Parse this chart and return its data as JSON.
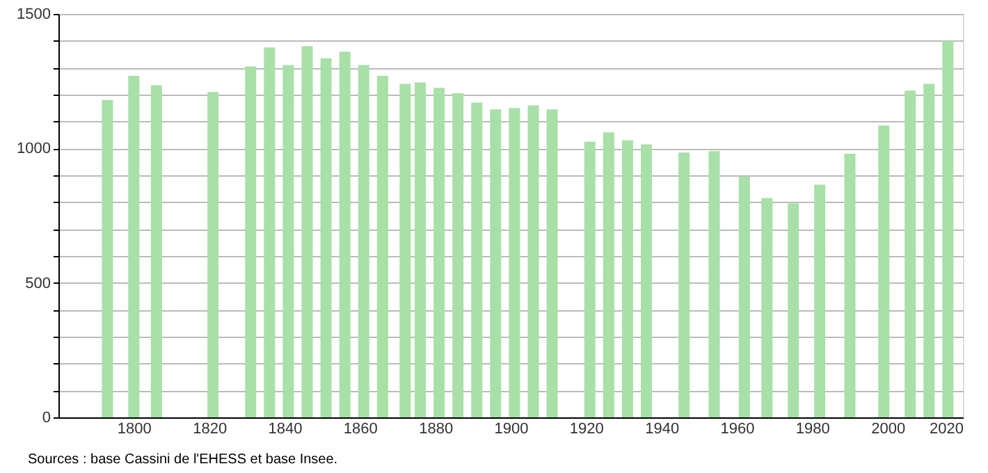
{
  "chart_data": {
    "type": "bar",
    "x": [
      1793,
      1800,
      1806,
      1821,
      1831,
      1836,
      1841,
      1846,
      1851,
      1856,
      1861,
      1866,
      1872,
      1876,
      1881,
      1886,
      1891,
      1896,
      1901,
      1906,
      1911,
      1921,
      1926,
      1931,
      1936,
      1946,
      1954,
      1962,
      1968,
      1975,
      1982,
      1990,
      1999,
      2006,
      2011,
      2016
    ],
    "values": [
      1180,
      1270,
      1235,
      1210,
      1305,
      1375,
      1310,
      1380,
      1335,
      1360,
      1310,
      1270,
      1240,
      1245,
      1225,
      1205,
      1170,
      1145,
      1150,
      1160,
      1145,
      1025,
      1060,
      1030,
      1015,
      985,
      990,
      895,
      815,
      795,
      865,
      980,
      1085,
      1215,
      1240,
      1400
    ],
    "color": "#a8e0a8",
    "xlim": [
      1780,
      2020
    ],
    "xticks": [
      1800,
      1820,
      1840,
      1860,
      1880,
      1900,
      1920,
      1940,
      1960,
      1980,
      2000,
      2020
    ],
    "ylim": [
      0,
      1500
    ],
    "yticks": [
      0,
      {
        "value": 100,
        "label": null
      },
      {
        "value": 200,
        "label": null
      },
      {
        "value": 300,
        "label": null
      },
      {
        "value": 400,
        "label": null
      },
      500,
      {
        "value": 600,
        "label": null
      },
      {
        "value": 700,
        "label": null
      },
      {
        "value": 800,
        "label": null
      },
      {
        "value": 900,
        "label": null
      },
      1000,
      {
        "value": 1100,
        "label": null
      },
      {
        "value": 1200,
        "label": null
      },
      {
        "value": 1300,
        "label": null
      },
      {
        "value": 1400,
        "label": null
      },
      1500
    ],
    "grid": "y",
    "annotations": [
      "Sources : base Cassini de l'EHESS et base Insee."
    ]
  }
}
